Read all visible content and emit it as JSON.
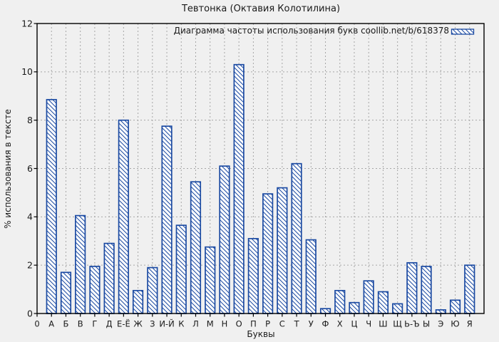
{
  "chart_data": {
    "type": "bar",
    "title": "Тевтонка (Октавия Колотилина)",
    "legend": "Диаграмма частоты использования букв coollib.net/b/618378",
    "xlabel": "Буквы",
    "ylabel": "% использования в тексте",
    "origin_tick_label": "0",
    "categories": [
      "А",
      "Б",
      "В",
      "Г",
      "Д",
      "Е-Ё",
      "Ж",
      "З",
      "И-Й",
      "К",
      "Л",
      "М",
      "Н",
      "О",
      "П",
      "Р",
      "С",
      "Т",
      "У",
      "Ф",
      "Х",
      "Ц",
      "Ч",
      "Ш",
      "Щ",
      "Ь-Ъ",
      "Ы",
      "Э",
      "Ю",
      "Я"
    ],
    "values": [
      8.85,
      1.7,
      4.05,
      1.95,
      2.9,
      8.0,
      0.95,
      1.9,
      7.75,
      3.65,
      5.45,
      2.75,
      6.1,
      10.3,
      3.1,
      4.95,
      5.2,
      6.2,
      3.05,
      0.2,
      0.95,
      0.45,
      1.35,
      0.9,
      0.4,
      2.1,
      1.95,
      0.15,
      0.55,
      2.0
    ],
    "ylim": [
      0,
      12
    ],
    "ytick_step": 2,
    "yticks": [
      0,
      2,
      4,
      6,
      8,
      10,
      12
    ],
    "grid": true,
    "legend_position": "top-right-inside",
    "hatch": "diagonal-backslash",
    "background": "#f0f0f0",
    "bar_color": "#1b4aa2",
    "bar_fill": "#ffffff",
    "grid_color": "#a6a6a6",
    "frame_color": "#000000",
    "text_color": "#1a1a1a"
  }
}
